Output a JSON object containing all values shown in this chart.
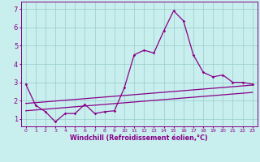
{
  "xlabel": "Windchill (Refroidissement éolien,°C)",
  "bg_color": "#c8eeee",
  "line_color": "#880088",
  "grid_color": "#99cccc",
  "spine_color": "#880088",
  "xlim": [
    -0.5,
    23.5
  ],
  "ylim": [
    0.6,
    7.4
  ],
  "xticks": [
    0,
    1,
    2,
    3,
    4,
    5,
    6,
    7,
    8,
    9,
    10,
    11,
    12,
    13,
    14,
    15,
    16,
    17,
    18,
    19,
    20,
    21,
    22,
    23
  ],
  "yticks": [
    1,
    2,
    3,
    4,
    5,
    6,
    7
  ],
  "series1_x": [
    0,
    1,
    2,
    3,
    4,
    5,
    6,
    7,
    8,
    9,
    10,
    11,
    12,
    13,
    14,
    15,
    16,
    17,
    18,
    19,
    20,
    21,
    22,
    23
  ],
  "series1_y": [
    2.9,
    1.75,
    1.4,
    0.85,
    1.3,
    1.3,
    1.8,
    1.3,
    1.4,
    1.45,
    2.7,
    4.5,
    4.75,
    4.6,
    5.8,
    6.9,
    6.35,
    4.5,
    3.55,
    3.3,
    3.4,
    3.0,
    3.0,
    2.9
  ],
  "series2_x": [
    0,
    23
  ],
  "series2_y": [
    1.85,
    2.85
  ],
  "series3_x": [
    0,
    23
  ],
  "series3_y": [
    1.45,
    2.45
  ],
  "xlabel_fontsize": 5.8,
  "xlabel_bold": true,
  "tick_fontsize_x": 4.5,
  "tick_fontsize_y": 6.0,
  "marker": "D",
  "markersize": 1.8,
  "linewidth": 0.9
}
